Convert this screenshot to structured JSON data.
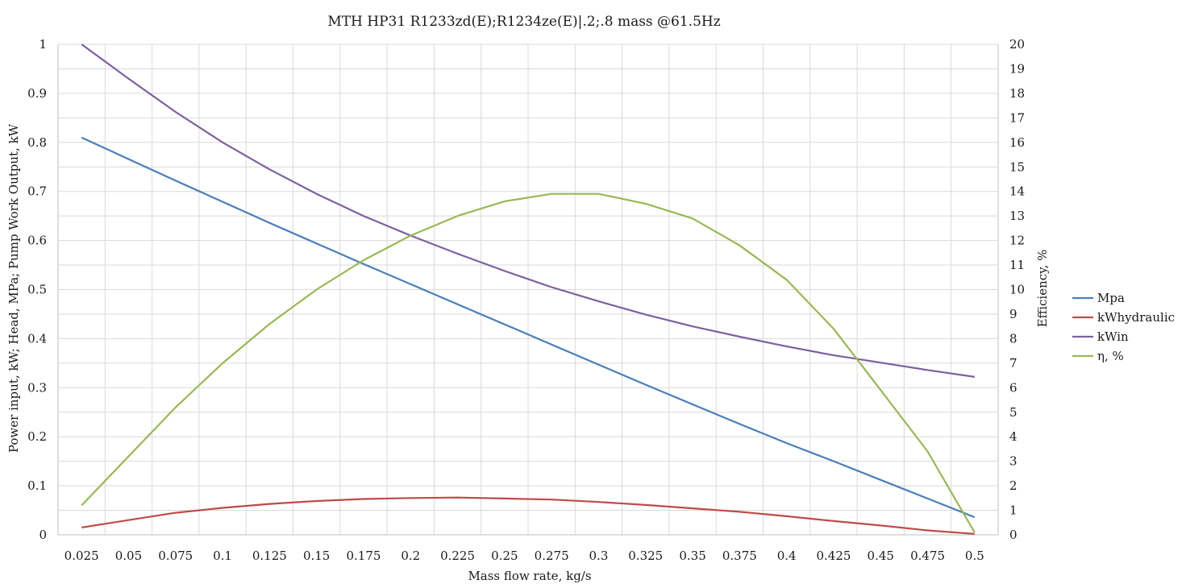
{
  "chart_data": {
    "type": "line",
    "title": "MTH HP31 R1233zd(E);R1234ze(E)|.2;.8 mass @61.5Hz",
    "xlabel": "Mass flow rate, kg/s",
    "ylabel": "Power input, kW; Head, MPa; Pump Work Output, kW",
    "y2label": "Efficiency, %",
    "x": [
      0.025,
      0.05,
      0.075,
      0.1,
      0.125,
      0.15,
      0.175,
      0.2,
      0.225,
      0.25,
      0.275,
      0.3,
      0.325,
      0.35,
      0.375,
      0.4,
      0.425,
      0.45,
      0.475,
      0.5
    ],
    "x_tick_labels": [
      "0.025",
      "0.05",
      "0.075",
      "0.1",
      "0.125",
      "0.15",
      "0.175",
      "0.2",
      "0.225",
      "0.25",
      "0.275",
      "0.3",
      "0.325",
      "0.35",
      "0.375",
      "0.4",
      "0.425",
      "0.45",
      "0.475",
      "0.5"
    ],
    "ylim": [
      0,
      1
    ],
    "y_tick_labels": [
      "0",
      "0.1",
      "0.2",
      "0.3",
      "0.4",
      "0.5",
      "0.6",
      "0.7",
      "0.8",
      "0.9",
      "1"
    ],
    "y2lim": [
      0,
      20
    ],
    "y2_tick_labels": [
      "0",
      "1",
      "2",
      "3",
      "4",
      "5",
      "6",
      "7",
      "8",
      "9",
      "10",
      "11",
      "12",
      "13",
      "14",
      "15",
      "16",
      "17",
      "18",
      "19",
      "20"
    ],
    "grid": true,
    "legend_position": "right",
    "series": [
      {
        "name": "Mpa",
        "axis": "left",
        "color": "#4a7ebb",
        "values": [
          0.81,
          0.766,
          0.722,
          0.679,
          0.636,
          0.594,
          0.552,
          0.511,
          0.47,
          0.429,
          0.388,
          0.347,
          0.306,
          0.266,
          0.226,
          0.187,
          0.15,
          0.112,
          0.074,
          0.036
        ]
      },
      {
        "name": "kWhydraulic",
        "axis": "left",
        "color": "#be4b48",
        "values": [
          0.015,
          0.03,
          0.045,
          0.055,
          0.063,
          0.069,
          0.073,
          0.075,
          0.076,
          0.074,
          0.072,
          0.067,
          0.061,
          0.054,
          0.047,
          0.038,
          0.028,
          0.019,
          0.009,
          0.002
        ]
      },
      {
        "name": "kWin",
        "axis": "left",
        "color": "#7d60a0",
        "values": [
          1.0,
          0.93,
          0.862,
          0.8,
          0.745,
          0.695,
          0.65,
          0.61,
          0.573,
          0.538,
          0.505,
          0.476,
          0.449,
          0.425,
          0.404,
          0.384,
          0.366,
          0.351,
          0.336,
          0.322
        ]
      },
      {
        "name": "η, %",
        "axis": "right",
        "color": "#98b954",
        "values": [
          1.2,
          3.2,
          5.2,
          7.0,
          8.6,
          10.0,
          11.2,
          12.2,
          13.0,
          13.6,
          13.9,
          13.9,
          13.5,
          12.9,
          11.8,
          10.4,
          8.4,
          5.9,
          3.4,
          0.1
        ]
      }
    ]
  }
}
